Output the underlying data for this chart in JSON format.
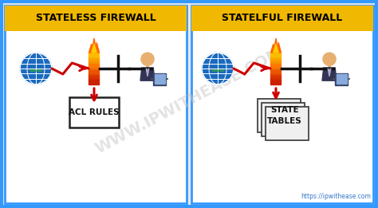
{
  "title_left": "STATELESS FIREWALL",
  "title_right": "STATELFUL FIREWALL",
  "label_left": "ACL RULES",
  "label_right": "STATE\nTABLES",
  "watermark": "WWW.IPWITHEASE.COM",
  "url": "https://ipwithease.com",
  "bg_outer": "#e8e8e8",
  "bg_panel": "#ffffff",
  "border_color": "#3399ff",
  "title_bg": "#f0b800",
  "title_color": "#000000",
  "arrow_color": "#cc0000",
  "line_color": "#111111",
  "globe_blue": "#1a6abf",
  "globe_line": "#ffffff",
  "www_color": "#33aa33",
  "fw_colors": [
    "#cc2000",
    "#dd3300",
    "#ee5500",
    "#ff7700",
    "#ff9900",
    "#ffbb00"
  ],
  "flame_color": "#ff6600",
  "flame_top": "#ffcc00",
  "person_skin": "#e8b070",
  "person_suit": "#333355",
  "laptop_color": "#334466",
  "screen_color": "#88aadd",
  "page_color": "#f0f0f0",
  "watermark_color": "#c8c8c8",
  "url_color": "#3377cc"
}
